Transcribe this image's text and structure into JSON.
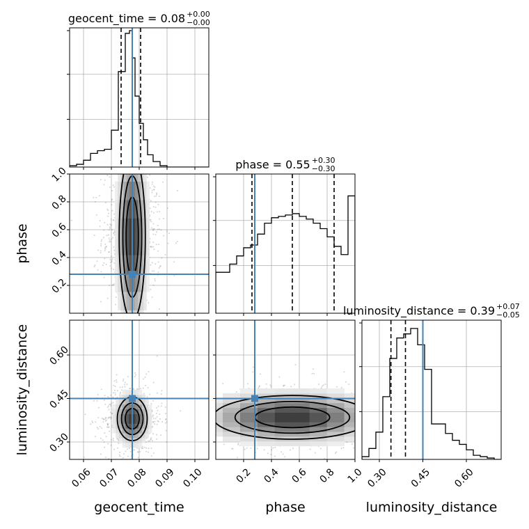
{
  "chart_data": {
    "type": "corner",
    "parameters": [
      "geocent_time",
      "phase",
      "luminosity_distance"
    ],
    "colors": {
      "truth": "#4682b4",
      "hist": "#000000",
      "grid": "#b0b0b0",
      "points": "#808080"
    },
    "truths": {
      "geocent_time": 0.0775,
      "phase": 0.28,
      "luminosity_distance": 0.45
    },
    "ranges": {
      "geocent_time": [
        0.055,
        0.105
      ],
      "phase": [
        0.0,
        1.0
      ],
      "luminosity_distance": [
        0.24,
        0.72
      ]
    },
    "ticks": {
      "geocent_time": {
        "values": [
          0.06,
          0.07,
          0.08,
          0.09,
          0.1
        ],
        "labels": [
          "0.06",
          "0.07",
          "0.08",
          "0.09",
          "0.10"
        ]
      },
      "phase_x": {
        "values": [
          0.2,
          0.4,
          0.6,
          0.8,
          1.0
        ],
        "labels": [
          "0.2",
          "0.4",
          "0.6",
          "0.8",
          "1.0"
        ]
      },
      "phase_y": {
        "values": [
          0.2,
          0.4,
          0.6,
          0.8,
          1.0
        ],
        "labels": [
          "0.2",
          "0.4",
          "0.6",
          "0.8",
          "1.0"
        ]
      },
      "luminosity_distance": {
        "values": [
          0.3,
          0.45,
          0.6
        ],
        "labels": [
          "0.30",
          "0.45",
          "0.60"
        ]
      }
    },
    "titles": [
      {
        "param": "geocent_time",
        "label": "geocent_time = 0.08",
        "plus": "+0.00",
        "minus": "−0.00"
      },
      {
        "param": "phase",
        "label": "phase = 0.55",
        "plus": "+0.30",
        "minus": "−0.30"
      },
      {
        "param": "luminosity_distance",
        "label": "luminosity_distance = 0.39",
        "plus": "+0.07",
        "minus": "−0.05"
      }
    ],
    "axis_labels": {
      "x": [
        "geocent_time",
        "phase",
        "luminosity_distance"
      ],
      "y": [
        "phase",
        "luminosity_distance"
      ]
    },
    "quantiles": {
      "geocent_time": [
        0.0735,
        0.0775,
        0.0805
      ],
      "phase": [
        0.26,
        0.55,
        0.85
      ],
      "luminosity_distance": [
        0.34,
        0.39,
        0.45
      ]
    },
    "histograms": {
      "geocent_time": {
        "edges": [
          0.055,
          0.0575,
          0.06,
          0.0625,
          0.065,
          0.0675,
          0.07,
          0.0725,
          0.075,
          0.0765,
          0.0775,
          0.0785,
          0.08,
          0.0815,
          0.083,
          0.085,
          0.0875,
          0.09,
          0.0925,
          0.095,
          0.105
        ],
        "heights": [
          0.01,
          0.02,
          0.05,
          0.1,
          0.12,
          0.13,
          0.27,
          0.7,
          0.98,
          1.0,
          0.8,
          0.52,
          0.32,
          0.2,
          0.09,
          0.04,
          0.01,
          0.0,
          0.0,
          0.0
        ]
      },
      "phase": {
        "edges": [
          0.0,
          0.05,
          0.1,
          0.15,
          0.2,
          0.25,
          0.3,
          0.35,
          0.4,
          0.45,
          0.5,
          0.55,
          0.6,
          0.65,
          0.7,
          0.75,
          0.8,
          0.85,
          0.9,
          0.95,
          1.0
        ],
        "heights": [
          0.3,
          0.3,
          0.36,
          0.42,
          0.48,
          0.5,
          0.58,
          0.66,
          0.7,
          0.71,
          0.72,
          0.73,
          0.71,
          0.69,
          0.66,
          0.62,
          0.56,
          0.49,
          0.43,
          0.86
        ]
      },
      "luminosity_distance": {
        "edges": [
          0.24,
          0.264,
          0.288,
          0.312,
          0.336,
          0.36,
          0.384,
          0.408,
          0.432,
          0.456,
          0.48,
          0.504,
          0.528,
          0.552,
          0.576,
          0.6,
          0.624,
          0.648,
          0.672,
          0.696,
          0.72
        ],
        "heights": [
          0.02,
          0.08,
          0.2,
          0.46,
          0.74,
          0.89,
          0.92,
          0.96,
          0.84,
          0.66,
          0.26,
          0.26,
          0.19,
          0.14,
          0.11,
          0.07,
          0.03,
          0.02,
          0.01,
          0.0
        ]
      }
    },
    "joint_2d": [
      {
        "x": "geocent_time",
        "y": "phase",
        "center": [
          0.0775,
          0.55
        ],
        "spread": [
          0.0028,
          0.36
        ],
        "background_extent": [
          0.012,
          0.55
        ],
        "contour_levels": [
          0.4,
          0.7,
          0.9
        ]
      },
      {
        "x": "geocent_time",
        "y": "luminosity_distance",
        "center": [
          0.0775,
          0.38
        ],
        "spread": [
          0.0032,
          0.045
        ],
        "background_extent": [
          0.012,
          0.14
        ],
        "contour_levels": [
          0.4,
          0.7,
          0.9
        ]
      },
      {
        "x": "phase",
        "y": "luminosity_distance",
        "center": [
          0.55,
          0.385
        ],
        "spread": [
          0.34,
          0.045
        ],
        "background_extent": [
          0.55,
          0.14
        ],
        "contour_levels": [
          0.4,
          0.7,
          0.9
        ]
      }
    ],
    "grid": true
  }
}
